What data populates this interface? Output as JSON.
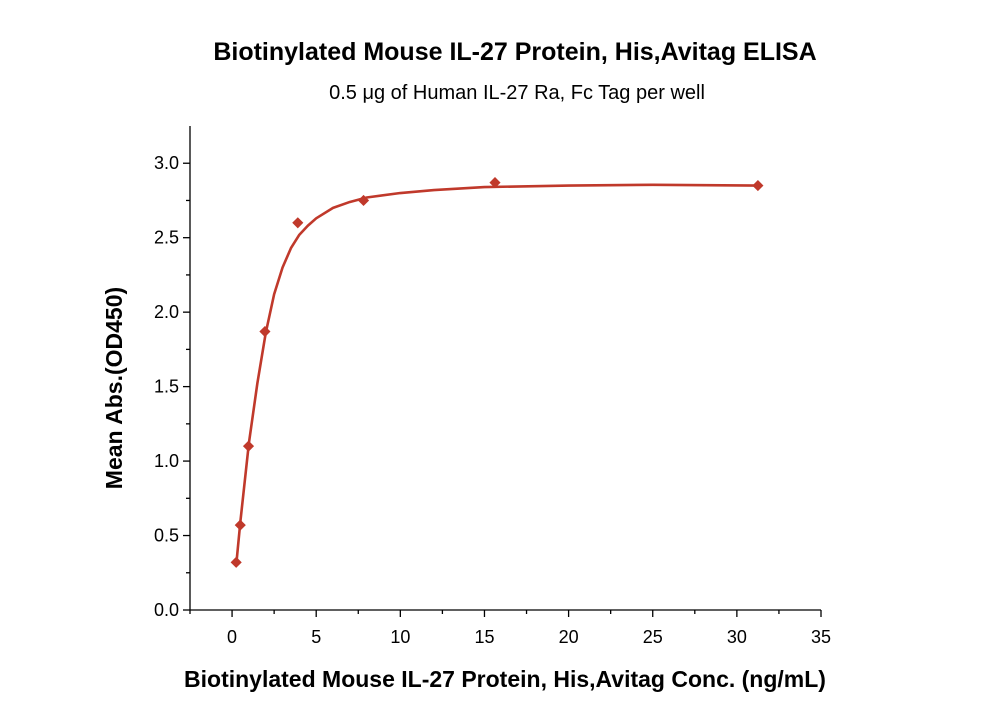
{
  "chart_data": {
    "type": "scatter",
    "title": "Biotinylated Mouse IL-27 Protein, His,Avitag ELISA",
    "subtitle": "0.5 μg of Human IL-27 Ra, Fc Tag per well",
    "xlabel": "Biotinylated Mouse IL-27 Protein, His,Avitag Conc. (ng/mL)",
    "ylabel": "Mean Abs.(OD450)",
    "xlim": [
      -2.5,
      35
    ],
    "ylim": [
      0,
      3.25
    ],
    "x_ticks": [
      0,
      5,
      10,
      15,
      20,
      25,
      30,
      35
    ],
    "x_tick_labels": [
      "0",
      "5",
      "10",
      "15",
      "20",
      "25",
      "30",
      "35"
    ],
    "y_ticks": [
      0.0,
      0.5,
      1.0,
      1.5,
      2.0,
      2.5,
      3.0
    ],
    "y_tick_labels": [
      "0.0",
      "0.5",
      "1.0",
      "1.5",
      "2.0",
      "2.5",
      "3.0"
    ],
    "grid": false,
    "colors": {
      "series": "#c0392b"
    },
    "series": [
      {
        "name": "Mean Abs.",
        "marker": "diamond",
        "x": [
          0.244,
          0.488,
          0.977,
          1.953,
          3.906,
          7.813,
          15.625,
          31.25
        ],
        "y": [
          0.32,
          0.57,
          1.1,
          1.87,
          2.6,
          2.75,
          2.87,
          2.85
        ]
      }
    ],
    "fit_curve": {
      "name": "Fitted curve",
      "x": [
        0.244,
        0.5,
        1,
        1.5,
        2,
        2.5,
        3,
        3.5,
        4,
        4.5,
        5,
        6,
        7,
        8,
        10,
        12,
        15,
        20,
        25,
        31.25
      ],
      "y": [
        0.3,
        0.6,
        1.12,
        1.52,
        1.86,
        2.12,
        2.3,
        2.43,
        2.52,
        2.58,
        2.63,
        2.7,
        2.74,
        2.77,
        2.8,
        2.82,
        2.84,
        2.85,
        2.855,
        2.85
      ]
    }
  }
}
